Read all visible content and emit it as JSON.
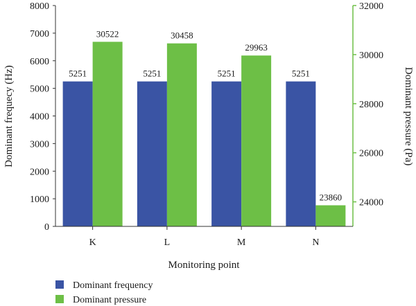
{
  "chart_data": {
    "type": "bar",
    "categories": [
      "K",
      "L",
      "M",
      "N"
    ],
    "series": [
      {
        "name": "Dominant frequency",
        "axis": "left",
        "color": "#3a54a4",
        "values": [
          5251,
          5251,
          5251,
          5251
        ]
      },
      {
        "name": "Dominant pressure",
        "axis": "right",
        "color": "#6dbf46",
        "values": [
          30522,
          30458,
          29963,
          23860
        ]
      }
    ],
    "xlabel": "Monitoring point",
    "ylabel_left": "Dominant frequecy (Hz)",
    "ylabel_right": "Dominant pressure (Pa)",
    "ylim_left": [
      0,
      8000
    ],
    "yticks_left": [
      0,
      1000,
      2000,
      3000,
      4000,
      5000,
      6000,
      7000,
      8000
    ],
    "ylim_right": [
      23000,
      32000
    ],
    "yticks_right": [
      24000,
      26000,
      28000,
      30000,
      32000
    ],
    "right_axis_color": "#6dbf46",
    "grid": false,
    "legend_position": "bottom-left"
  }
}
